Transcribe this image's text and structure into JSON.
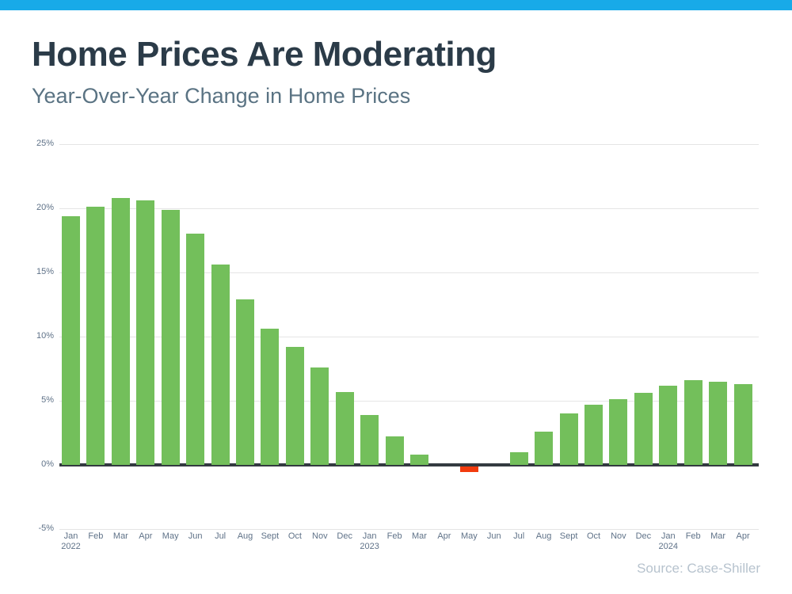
{
  "page": {
    "title": "Home Prices Are Moderating",
    "subtitle": "Year-Over-Year Change in Home Prices",
    "source": "Source: Case-Shiller",
    "accent_color": "#18aae8"
  },
  "chart_data": {
    "type": "bar",
    "title": "Home Prices Are Moderating",
    "subtitle": "Year-Over-Year Change in Home Prices",
    "xlabel": "",
    "ylabel": "",
    "source": "Source: Case-Shiller",
    "ylim": [
      -5,
      25
    ],
    "ytick_step": 5,
    "ytick_labels": [
      "25%",
      "20%",
      "15%",
      "10%",
      "5%",
      "0%",
      "-5%"
    ],
    "grid": true,
    "legend": false,
    "bar_color": "#73bf5b",
    "negative_bar_color": "#f23b0e",
    "categories": [
      {
        "label": "Jan",
        "year": "2022"
      },
      {
        "label": "Feb"
      },
      {
        "label": "Mar"
      },
      {
        "label": "Apr"
      },
      {
        "label": "May"
      },
      {
        "label": "Jun"
      },
      {
        "label": "Jul"
      },
      {
        "label": "Aug"
      },
      {
        "label": "Sept"
      },
      {
        "label": "Oct"
      },
      {
        "label": "Nov"
      },
      {
        "label": "Dec"
      },
      {
        "label": "Jan",
        "year": "2023"
      },
      {
        "label": "Feb"
      },
      {
        "label": "Mar"
      },
      {
        "label": "Apr"
      },
      {
        "label": "May"
      },
      {
        "label": "Jun"
      },
      {
        "label": "Jul"
      },
      {
        "label": "Aug"
      },
      {
        "label": "Sept"
      },
      {
        "label": "Oct"
      },
      {
        "label": "Nov"
      },
      {
        "label": "Dec"
      },
      {
        "label": "Jan",
        "year": "2024"
      },
      {
        "label": "Feb"
      },
      {
        "label": "Mar"
      },
      {
        "label": "Apr"
      }
    ],
    "values": [
      19.4,
      20.1,
      20.8,
      20.6,
      19.9,
      18.0,
      15.6,
      12.9,
      10.6,
      9.2,
      7.6,
      5.7,
      3.9,
      2.2,
      0.8,
      0.0,
      -0.3,
      0.0,
      1.0,
      2.6,
      4.0,
      4.7,
      5.1,
      5.6,
      6.2,
      6.6,
      6.5,
      6.3
    ],
    "unit": "%"
  }
}
